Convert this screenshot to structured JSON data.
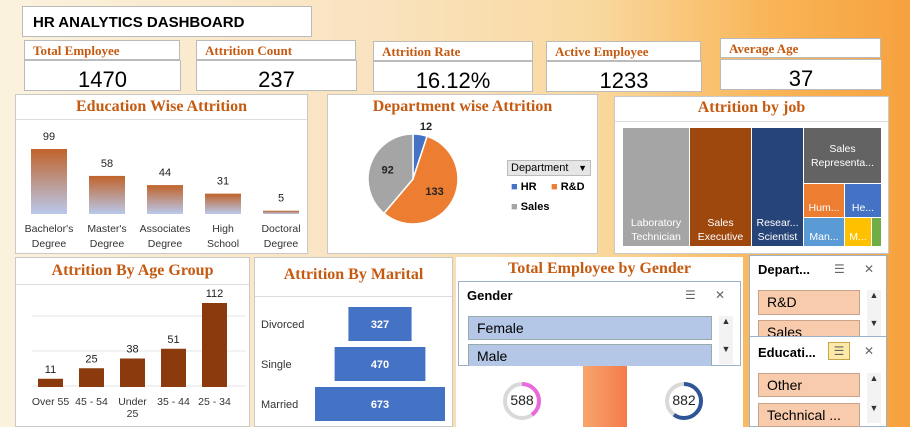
{
  "title": "HR ANALYTICS DASHBOARD",
  "kpis": [
    {
      "label": "Total Employee",
      "value": "1470"
    },
    {
      "label": "Attrition Count",
      "value": "237"
    },
    {
      "label": "Attrition Rate",
      "value": "16.12%"
    },
    {
      "label": "Active Employee",
      "value": "1233"
    },
    {
      "label": "Average Age",
      "value": "37"
    }
  ],
  "colors": {
    "accent": "#c55a11",
    "bar_brown": "#8b3a0e",
    "blue": "#4472c4",
    "orange": "#ed7d31",
    "gray": "#a5a5a5"
  },
  "charts": {
    "education": {
      "title": "Education Wise Attrition",
      "type": "bar",
      "categories": [
        "Bachelor's Degree",
        "Master's Degree",
        "Associates Degree",
        "High School",
        "Doctoral Degree"
      ],
      "values": [
        99,
        58,
        44,
        31,
        5
      ]
    },
    "department": {
      "title": "Department wise Attrition",
      "type": "pie",
      "legend_title": "Department",
      "slices": [
        {
          "name": "HR",
          "value": 12
        },
        {
          "name": "R&D",
          "value": 133
        },
        {
          "name": "Sales",
          "value": 92
        }
      ]
    },
    "job": {
      "title": "Attrition by job",
      "type": "treemap",
      "tiles": [
        {
          "label": "Laboratory Technician",
          "color": "#a5a5a5"
        },
        {
          "label": "Sales Executive",
          "color": "#9e480e"
        },
        {
          "label": "Resear... Scientist",
          "color": "#264478"
        },
        {
          "label": "Sales Representa...",
          "color": "#636363"
        },
        {
          "label": "Hum...",
          "color": "#ed7d31"
        },
        {
          "label": "He...",
          "color": "#4472c4"
        },
        {
          "label": "Man...",
          "color": "#5b9bd5"
        },
        {
          "label": "M...",
          "color": "#ffc000"
        },
        {
          "label": "",
          "color": "#70ad47"
        }
      ]
    },
    "age": {
      "title": "Attrition By Age Group",
      "type": "bar",
      "categories": [
        "Over 55",
        "45 - 54",
        "Under 25",
        "35 - 44",
        "25 - 34"
      ],
      "values": [
        11,
        25,
        38,
        51,
        112
      ]
    },
    "marital": {
      "title": "Attrition By Marital",
      "type": "funnel",
      "categories": [
        "Divorced",
        "Single",
        "Married"
      ],
      "values": [
        327,
        470,
        673
      ]
    },
    "gender": {
      "title": "Total  Employee by Gender",
      "female": "588",
      "male": "882"
    }
  },
  "slicers": {
    "gender": {
      "header": "Gender",
      "items": [
        "Female",
        "Male"
      ]
    },
    "department": {
      "header": "Depart...",
      "items": [
        "R&D",
        "Sales"
      ]
    },
    "education": {
      "header": "Educati...",
      "items": [
        "Other",
        "Technical ..."
      ]
    }
  }
}
